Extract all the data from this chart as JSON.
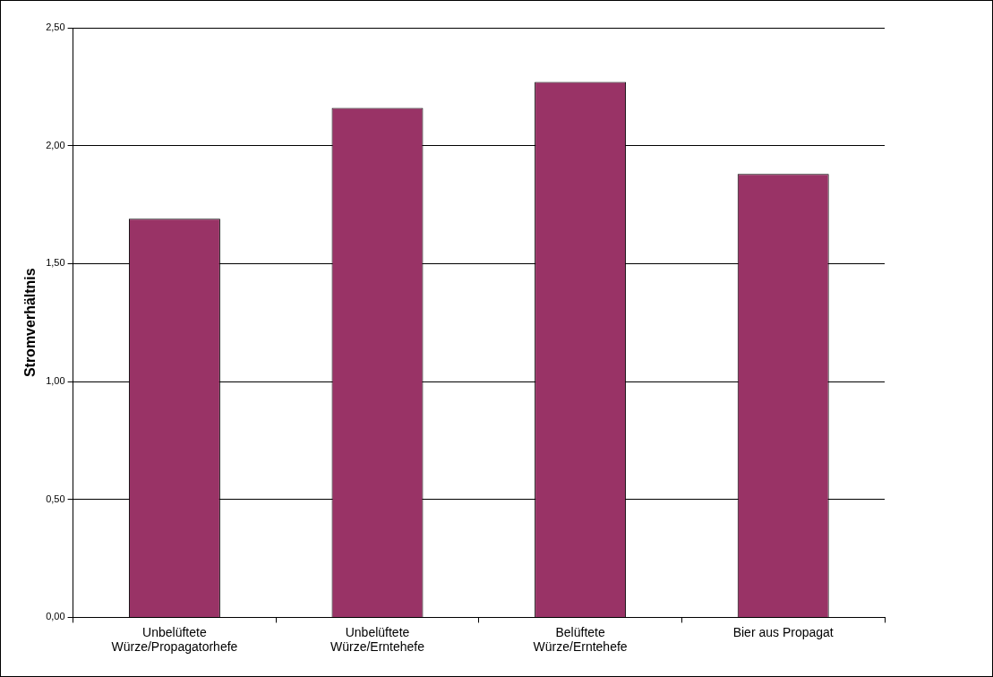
{
  "chart_data": {
    "type": "bar",
    "ylabel": "Stromverhältnis",
    "categories": [
      "Unbelüftete Würze/Propagatorhefe",
      "Unbelüftete Würze/Erntehefe",
      "Belüftete Würze/Erntehefe",
      "Bier aus Propagat"
    ],
    "values": [
      1.69,
      2.16,
      2.27,
      1.88
    ],
    "color": "#993366",
    "ylim": [
      0,
      2.5
    ],
    "yticks": [
      {
        "value": 0,
        "label": "0,00"
      },
      {
        "value": 0.5,
        "label": "0,50"
      },
      {
        "value": 1,
        "label": "1,00"
      },
      {
        "value": 1.5,
        "label": "1,50"
      },
      {
        "value": 2,
        "label": "2,00"
      },
      {
        "value": 2.5,
        "label": "2,50"
      }
    ],
    "grid": "y",
    "legend": false
  }
}
